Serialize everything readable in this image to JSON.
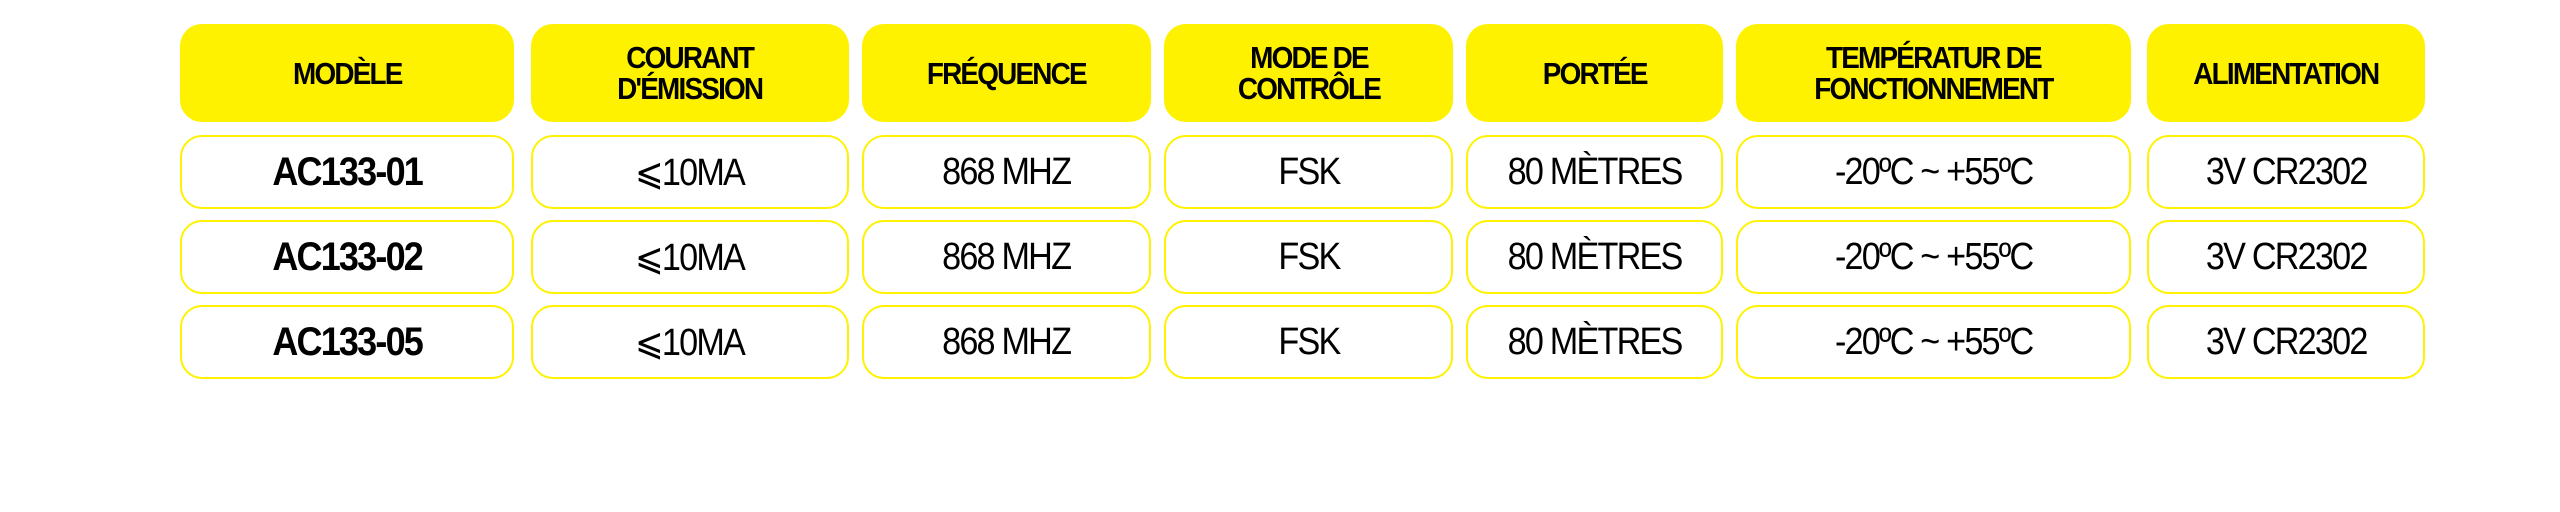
{
  "table": {
    "header_color": "#fff200",
    "border_color": "#fff200",
    "columns": [
      "MODÈLE",
      "COURANT\nD'ÉMISSION",
      "FRÉQUENCE",
      "MODE DE\nCONTRÔLE",
      "PORTÉE",
      "TEMPÉRATUR DE\nFONCTIONNEMENT",
      "ALIMENTATION"
    ],
    "rows": [
      [
        "AC133-01",
        "⩽10MA",
        "868 MHZ",
        "FSK",
        "80 MÈTRES",
        "-20ºC ~ +55ºC",
        "3V CR2302"
      ],
      [
        "AC133-02",
        "⩽10MA",
        "868 MHZ",
        "FSK",
        "80 MÈTRES",
        "-20ºC ~ +55ºC",
        "3V CR2302"
      ],
      [
        "AC133-05",
        "⩽10MA",
        "868 MHZ",
        "FSK",
        "80 MÈTRES",
        "-20ºC ~ +55ºC",
        "3V CR2302"
      ]
    ]
  }
}
